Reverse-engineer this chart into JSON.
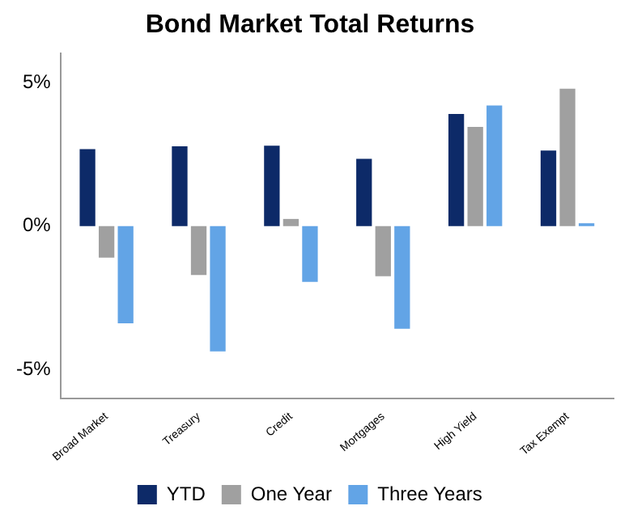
{
  "chart_data": {
    "type": "bar",
    "title": "Bond Market Total Returns",
    "categories": [
      "Broad Market",
      "Treasury",
      "Credit",
      "Mortgages",
      "High Yield",
      "Tax Exempt"
    ],
    "series": [
      {
        "name": "YTD",
        "color": "#0d2a68",
        "values": [
          2.68,
          2.78,
          2.8,
          2.34,
          3.9,
          2.63
        ]
      },
      {
        "name": "One Year",
        "color": "#a0a0a0",
        "values": [
          -1.1,
          -1.7,
          0.25,
          -1.74,
          3.45,
          4.78
        ]
      },
      {
        "name": "Three Years",
        "color": "#62a4e6",
        "values": [
          -3.38,
          -4.36,
          -1.94,
          -3.57,
          4.2,
          0.1
        ]
      }
    ],
    "ylim": [
      -6,
      6
    ],
    "yticks": [
      {
        "value": -5,
        "label": "-5%"
      },
      {
        "value": 0,
        "label": "0%"
      },
      {
        "value": 5,
        "label": "5%"
      }
    ],
    "grid": false,
    "legend": "bottom"
  }
}
